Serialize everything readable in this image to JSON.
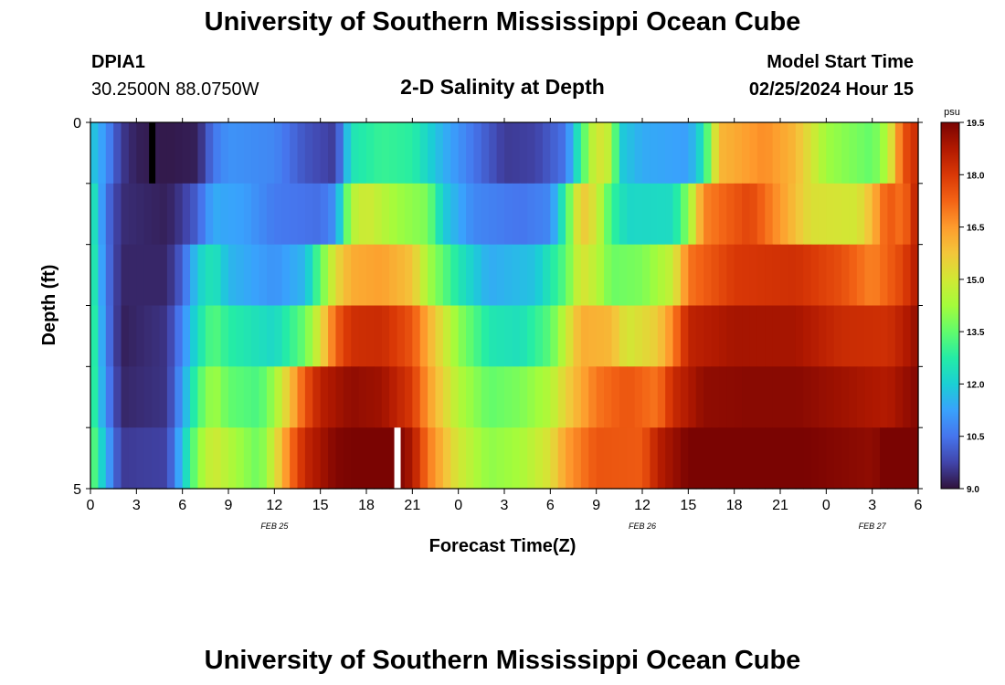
{
  "title": "University of Southern Mississippi Ocean Cube",
  "footer_title": "University of Southern Mississippi Ocean Cube",
  "station": {
    "id": "DPIA1",
    "coords": "30.2500N  88.0750W"
  },
  "plot_title": "2-D Salinity at Depth",
  "model": {
    "label": "Model Start Time",
    "start": "02/25/2024 Hour 15"
  },
  "chart_data": {
    "type": "heatmap",
    "title": "2-D Salinity at Depth",
    "xlabel": "Forecast Time(Z)",
    "ylabel": "Depth (ft)",
    "ylim": [
      0,
      5
    ],
    "y_ticks": [
      "0",
      "5"
    ],
    "x_ticks": [
      "0",
      "3",
      "6",
      "9",
      "12",
      "15",
      "18",
      "21",
      "0",
      "3",
      "6",
      "9",
      "12",
      "15",
      "18",
      "21",
      "0",
      "3",
      "6"
    ],
    "date_labels": [
      {
        "label": "FEB 25",
        "hour": 12
      },
      {
        "label": "FEB 26",
        "hour": 36
      },
      {
        "label": "FEB 27",
        "hour": 51
      }
    ],
    "x_range_hours": [
      0,
      54
    ],
    "columns_per_hour": 2,
    "depth_layers": [
      "0-1 ft",
      "1-2 ft",
      "2-3 ft",
      "3-4 ft",
      "4-5 ft",
      "5 ft"
    ],
    "layer_keyframes": [
      [
        [
          0,
          12.0
        ],
        [
          1,
          11.0
        ],
        [
          2,
          9.6
        ],
        [
          3,
          9.2
        ],
        [
          5,
          9.1
        ],
        [
          7,
          9.2
        ],
        [
          8,
          10.5
        ],
        [
          9,
          11.0
        ],
        [
          12,
          10.8
        ],
        [
          14,
          10.0
        ],
        [
          16,
          9.6
        ],
        [
          16.5,
          11.0
        ],
        [
          17,
          12.5
        ],
        [
          19,
          13.0
        ],
        [
          21,
          12.8
        ],
        [
          23,
          11.5
        ],
        [
          25,
          10.5
        ],
        [
          27,
          9.6
        ],
        [
          29,
          9.7
        ],
        [
          31,
          10.5
        ],
        [
          32,
          13.0
        ],
        [
          33,
          15.2
        ],
        [
          34,
          14.6
        ],
        [
          34.5,
          12.0
        ],
        [
          36,
          11.4
        ],
        [
          39,
          11.2
        ],
        [
          40,
          12.5
        ],
        [
          41,
          16.0
        ],
        [
          44,
          16.7
        ],
        [
          46,
          16.0
        ],
        [
          48,
          14.2
        ],
        [
          51,
          13.5
        ],
        [
          52,
          14.5
        ],
        [
          53,
          17.5
        ],
        [
          54,
          18.4
        ]
      ],
      [
        [
          0,
          13.0
        ],
        [
          1,
          10.5
        ],
        [
          2,
          9.4
        ],
        [
          5,
          9.2
        ],
        [
          6,
          9.6
        ],
        [
          7,
          10.2
        ],
        [
          8,
          11.4
        ],
        [
          10,
          11.2
        ],
        [
          12,
          10.6
        ],
        [
          15,
          10.4
        ],
        [
          16,
          11.0
        ],
        [
          17,
          14.5
        ],
        [
          18,
          15.0
        ],
        [
          20,
          14.2
        ],
        [
          22,
          13.8
        ],
        [
          23,
          12.0
        ],
        [
          25,
          10.8
        ],
        [
          28,
          10.5
        ],
        [
          30,
          10.8
        ],
        [
          31,
          13.0
        ],
        [
          32,
          15.8
        ],
        [
          33,
          15.0
        ],
        [
          34,
          13.0
        ],
        [
          35,
          12.2
        ],
        [
          38,
          12.3
        ],
        [
          39,
          14.0
        ],
        [
          40,
          16.8
        ],
        [
          43,
          17.8
        ],
        [
          45,
          16.5
        ],
        [
          47,
          15.2
        ],
        [
          50,
          15.0
        ],
        [
          51,
          16.0
        ],
        [
          52,
          17.5
        ],
        [
          53,
          17.0
        ],
        [
          54,
          18.8
        ]
      ],
      [
        [
          0,
          13.2
        ],
        [
          1,
          10.6
        ],
        [
          2,
          9.3
        ],
        [
          5,
          9.3
        ],
        [
          6,
          10.2
        ],
        [
          7,
          12.0
        ],
        [
          8,
          12.6
        ],
        [
          9,
          11.6
        ],
        [
          12,
          11.0
        ],
        [
          14,
          11.6
        ],
        [
          15,
          13.5
        ],
        [
          16,
          15.3
        ],
        [
          17,
          16.2
        ],
        [
          19,
          16.4
        ],
        [
          21,
          15.8
        ],
        [
          22,
          14.3
        ],
        [
          24,
          12.6
        ],
        [
          26,
          11.4
        ],
        [
          29,
          11.8
        ],
        [
          31,
          13.4
        ],
        [
          32,
          15.2
        ],
        [
          33,
          14.6
        ],
        [
          34,
          13.6
        ],
        [
          36,
          13.8
        ],
        [
          38,
          14.8
        ],
        [
          39,
          17.0
        ],
        [
          42,
          18.0
        ],
        [
          46,
          18.2
        ],
        [
          49,
          17.6
        ],
        [
          51,
          16.8
        ],
        [
          53,
          17.8
        ],
        [
          54,
          18.8
        ]
      ],
      [
        [
          0,
          13.4
        ],
        [
          1,
          10.7
        ],
        [
          2,
          9.2
        ],
        [
          5,
          9.5
        ],
        [
          6,
          10.8
        ],
        [
          7,
          12.4
        ],
        [
          8,
          13.4
        ],
        [
          9,
          12.8
        ],
        [
          12,
          12.2
        ],
        [
          14,
          13.6
        ],
        [
          15,
          15.2
        ],
        [
          16,
          17.3
        ],
        [
          17,
          18.2
        ],
        [
          19,
          18.3
        ],
        [
          21,
          17.5
        ],
        [
          22,
          16.2
        ],
        [
          24,
          14.0
        ],
        [
          26,
          12.6
        ],
        [
          28,
          12.4
        ],
        [
          30,
          13.4
        ],
        [
          31,
          14.8
        ],
        [
          32,
          16.2
        ],
        [
          34,
          16.0
        ],
        [
          35,
          15.0
        ],
        [
          37,
          15.6
        ],
        [
          38,
          16.8
        ],
        [
          39,
          18.5
        ],
        [
          42,
          18.9
        ],
        [
          46,
          18.9
        ],
        [
          49,
          18.3
        ],
        [
          52,
          18.2
        ],
        [
          53,
          18.6
        ],
        [
          54,
          19.2
        ]
      ],
      [
        [
          0,
          13.4
        ],
        [
          1,
          10.9
        ],
        [
          2,
          9.3
        ],
        [
          5,
          9.5
        ],
        [
          6,
          11.2
        ],
        [
          7,
          13.2
        ],
        [
          8,
          14.3
        ],
        [
          9,
          13.5
        ],
        [
          11,
          13.2
        ],
        [
          12,
          14.2
        ],
        [
          13,
          15.8
        ],
        [
          14,
          17.5
        ],
        [
          15,
          18.6
        ],
        [
          17,
          19.2
        ],
        [
          19,
          19.0
        ],
        [
          21,
          18.0
        ],
        [
          22,
          16.5
        ],
        [
          24,
          14.5
        ],
        [
          26,
          13.5
        ],
        [
          28,
          13.8
        ],
        [
          30,
          14.5
        ],
        [
          31,
          15.5
        ],
        [
          33,
          17.0
        ],
        [
          35,
          17.5
        ],
        [
          37,
          17.0
        ],
        [
          38,
          18.3
        ],
        [
          40,
          19.2
        ],
        [
          43,
          19.3
        ],
        [
          46,
          19.3
        ],
        [
          49,
          19.0
        ],
        [
          52,
          18.7
        ],
        [
          54,
          19.4
        ]
      ],
      [
        [
          0,
          13.8
        ],
        [
          1,
          11.5
        ],
        [
          2,
          9.6
        ],
        [
          5,
          9.7
        ],
        [
          6,
          11.8
        ],
        [
          7,
          14.0
        ],
        [
          8,
          15.0
        ],
        [
          9,
          14.5
        ],
        [
          11,
          13.6
        ],
        [
          12,
          15.0
        ],
        [
          13,
          17.0
        ],
        [
          14,
          18.4
        ],
        [
          16,
          19.4
        ],
        [
          18,
          19.6
        ],
        [
          20,
          19.5
        ],
        [
          21,
          18.8
        ],
        [
          22,
          17.0
        ],
        [
          24,
          15.0
        ],
        [
          26,
          14.0
        ],
        [
          28,
          14.3
        ],
        [
          30,
          15.2
        ],
        [
          31,
          16.4
        ],
        [
          33,
          17.5
        ],
        [
          36,
          17.4
        ],
        [
          37,
          18.6
        ],
        [
          39,
          19.5
        ],
        [
          42,
          19.5
        ],
        [
          45,
          19.6
        ],
        [
          48,
          19.4
        ],
        [
          51,
          19.2
        ],
        [
          52,
          19.6
        ],
        [
          54,
          19.5
        ]
      ]
    ],
    "colorbar": {
      "unit": "psu",
      "min": 9.0,
      "max": 19.5,
      "tick_labels": [
        "9.0",
        "10.5",
        "12.0",
        "13.5",
        "15.0",
        "16.5",
        "18.0",
        "19.5"
      ],
      "tick_values": [
        9.0,
        10.5,
        12.0,
        13.5,
        15.0,
        16.5,
        18.0,
        19.5
      ],
      "palette": [
        "#30123b",
        "#4145ab",
        "#4675ed",
        "#39a2fc",
        "#1bcfd4",
        "#24eca6",
        "#61fc6c",
        "#a4fc3b",
        "#d1e834",
        "#f3c63a",
        "#fe9b2d",
        "#f36315",
        "#d93806",
        "#b11901",
        "#7a0402"
      ]
    },
    "markers": [
      {
        "type": "black-bar",
        "hour": 4,
        "layer": 0
      },
      {
        "type": "white-bar",
        "hour": 20,
        "layer": 5
      }
    ]
  }
}
